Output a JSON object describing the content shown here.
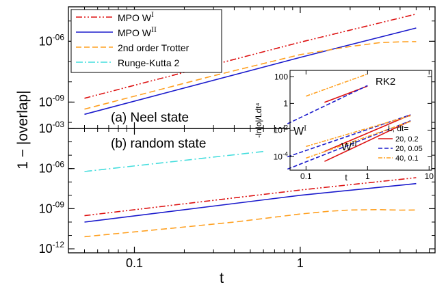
{
  "chart_data": {
    "type": "line",
    "xscale": "log",
    "yscale": "log",
    "xlabel": "t",
    "ylabel": "1 − |overlap|",
    "xlim": [
      0.04,
      6.5
    ],
    "x_ticks": [
      {
        "value": 0.1,
        "label": "0.1"
      },
      {
        "value": 1,
        "label": "1"
      }
    ],
    "panels": [
      {
        "id": "top",
        "label": "(a) Neel state",
        "ylim": [
          5e-11,
          5e-05
        ],
        "y_ticks": [
          {
            "mantissa": "10",
            "exp": "-06",
            "value": 1e-06
          },
          {
            "mantissa": "10",
            "exp": "-09",
            "value": 1e-09
          }
        ],
        "series": [
          {
            "name": "MPO W",
            "sup": "I",
            "style": "dashdotdot",
            "color": "#dd1111",
            "x": [
              0.05,
              1,
              5
            ],
            "y": [
              1.55e-09,
              9e-07,
              2.2e-05
            ]
          },
          {
            "name": "MPO W",
            "sup": "II",
            "style": "solid",
            "color": "#1a1acc",
            "x": [
              0.05,
              1,
              5
            ],
            "y": [
              2.5e-10,
              1.6e-07,
              4.5e-06
            ]
          },
          {
            "name": "2nd order Trotter",
            "sup": "",
            "style": "dashed",
            "color": "#ffa020",
            "x": [
              0.05,
              0.3,
              1,
              2,
              3,
              4,
              5
            ],
            "y": [
              4.5e-10,
              2e-08,
              2.2e-07,
              5.5e-07,
              8.5e-07,
              9.4e-07,
              9.6e-07
            ]
          },
          {
            "name": "Runge-Kutta 2",
            "sup": "",
            "style": "dashdot",
            "color": "#44dddd",
            "x": [],
            "y": []
          }
        ]
      },
      {
        "id": "bottom",
        "label": "(b) random state",
        "ylim": [
          5e-13,
          0.001
        ],
        "y_ticks": [
          {
            "mantissa": "10",
            "exp": "-03",
            "value": 0.001
          },
          {
            "mantissa": "10",
            "exp": "-06",
            "value": 1e-06
          },
          {
            "mantissa": "10",
            "exp": "-09",
            "value": 1e-09
          },
          {
            "mantissa": "10",
            "exp": "-12",
            "value": 1e-12
          }
        ],
        "series": [
          {
            "name": "Runge-Kutta 2",
            "style": "dashdot",
            "color": "#44dddd",
            "x": [
              0.05,
              0.6
            ],
            "y": [
              6e-07,
              1.9e-05
            ]
          },
          {
            "name": "MPO W^I",
            "style": "dashdotdot",
            "color": "#dd1111",
            "x": [
              0.05,
              1,
              5
            ],
            "y": [
              3e-10,
              2.5e-08,
              2.1e-07
            ]
          },
          {
            "name": "MPO W^II",
            "style": "solid",
            "color": "#1a1acc",
            "x": [
              0.05,
              1,
              5
            ],
            "y": [
              1e-10,
              1e-08,
              7.5e-08
            ]
          },
          {
            "name": "2nd order Trotter",
            "style": "dashed",
            "color": "#ffa020",
            "x": [
              0.05,
              0.15,
              0.4,
              1,
              1.5,
              2,
              3,
              4,
              5
            ],
            "y": [
              8e-12,
              3e-11,
              1e-10,
              4e-10,
              6.5e-10,
              8e-10,
              8.5e-10,
              7.8e-10,
              8e-10
            ]
          }
        ]
      }
    ],
    "inset": {
      "xlabel": "t",
      "ylabel": "-ln|o|/Ldt⁴",
      "xlim": [
        0.055,
        11
      ],
      "ylim": [
        1e-05,
        300
      ],
      "x_ticks": [
        {
          "value": 0.1,
          "label": "0.1"
        },
        {
          "value": 1,
          "label": "1"
        },
        {
          "value": 10,
          "label": "10"
        }
      ],
      "y_ticks": [
        {
          "value": 100,
          "mantissa": "100",
          "exp": ""
        },
        {
          "value": 1,
          "mantissa": "1",
          "exp": ""
        },
        {
          "value": 0.01,
          "mantissa": "10",
          "exp": "-2"
        },
        {
          "value": 0.0001,
          "mantissa": "10",
          "exp": "-4"
        }
      ],
      "annotations": [
        {
          "text": "RK2",
          "sup": ""
        },
        {
          "text": "W",
          "sup": "I"
        },
        {
          "text": "W",
          "sup": "II"
        }
      ],
      "legend_title": "L, dt=",
      "legend": [
        {
          "label": "20, 0.2",
          "style": "solid",
          "color": "#dd1111"
        },
        {
          "label": "20, 0.05",
          "style": "dashed",
          "color": "#1a1acc"
        },
        {
          "label": "40, 0.1",
          "style": "dashdot",
          "color": "#ffa020"
        }
      ],
      "series": [
        {
          "group": "RK2",
          "style": "solid",
          "color": "#dd1111",
          "x": [
            0.2,
            1
          ],
          "y": [
            1.2,
            20
          ]
        },
        {
          "group": "RK2",
          "style": "dashed",
          "color": "#1a1acc",
          "x": [
            0.05,
            1
          ],
          "y": [
            0.03,
            22
          ]
        },
        {
          "group": "RK2",
          "style": "dashdot",
          "color": "#ffa020",
          "x": [
            0.1,
            1
          ],
          "y": [
            3.5,
            160
          ]
        },
        {
          "group": "WI",
          "style": "solid",
          "color": "#dd1111",
          "x": [
            0.2,
            5
          ],
          "y": [
            0.00025,
            0.14
          ]
        },
        {
          "group": "WI",
          "style": "dashed",
          "color": "#1a1acc",
          "x": [
            0.05,
            5
          ],
          "y": [
            0.0001,
            0.14
          ]
        },
        {
          "group": "WI",
          "style": "dashdot",
          "color": "#ffa020",
          "x": [
            0.1,
            5
          ],
          "y": [
            0.0006,
            0.12
          ]
        },
        {
          "group": "WII",
          "style": "solid",
          "color": "#dd1111",
          "x": [
            0.2,
            5
          ],
          "y": [
            4.5e-05,
            0.05
          ]
        },
        {
          "group": "WII",
          "style": "dashed",
          "color": "#1a1acc",
          "x": [
            0.05,
            5
          ],
          "y": [
            1.2e-05,
            0.05
          ]
        },
        {
          "group": "WII",
          "style": "dashdot",
          "color": "#ffa020",
          "x": [
            0.1,
            5
          ],
          "y": [
            8e-05,
            0.045
          ]
        }
      ]
    }
  }
}
